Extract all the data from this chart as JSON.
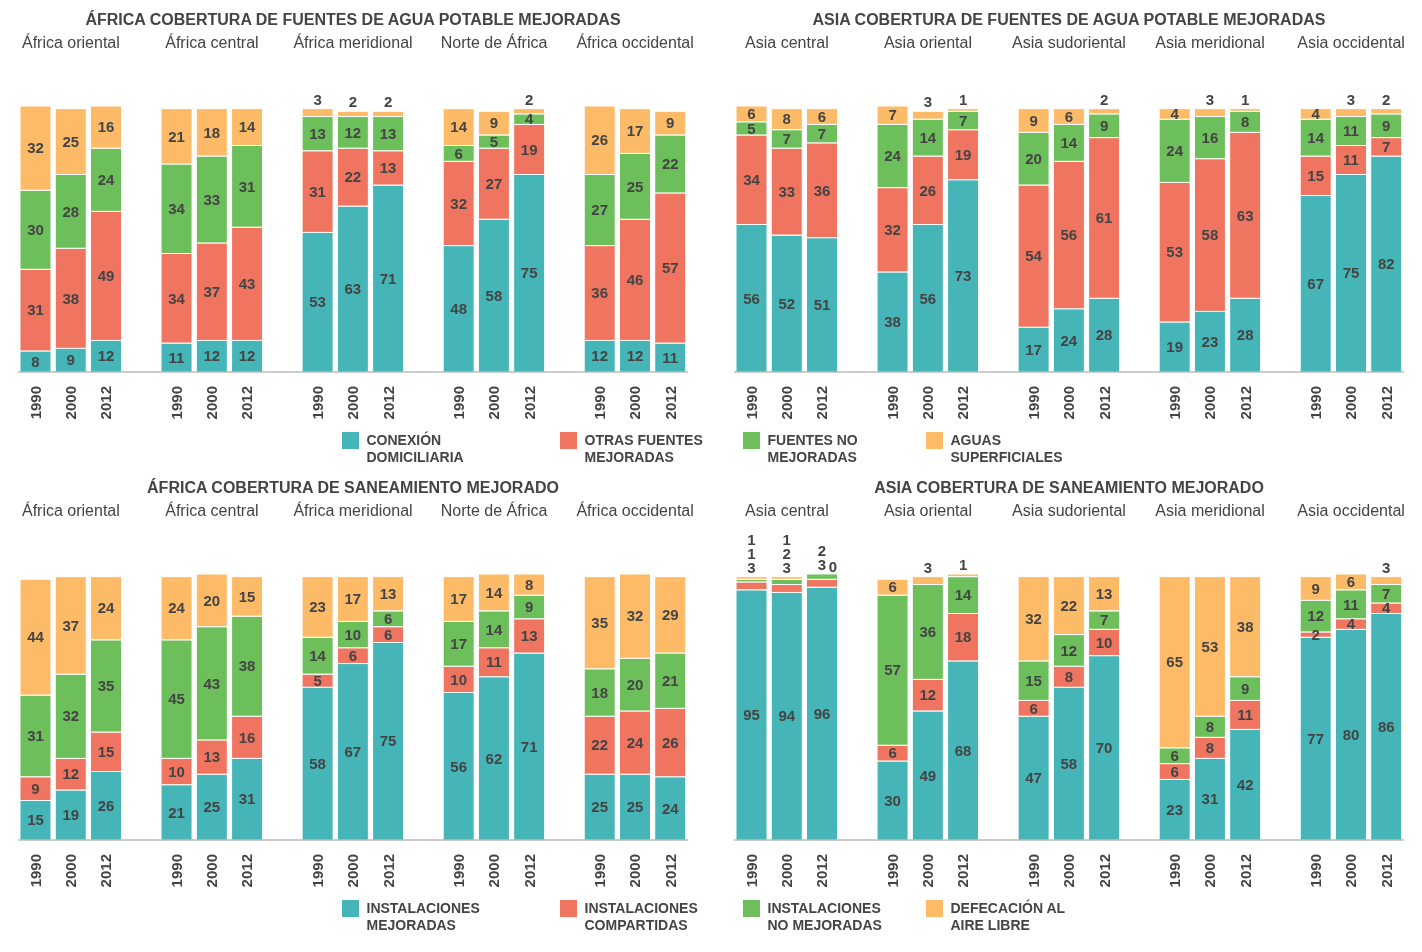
{
  "chart_data": [
    {
      "type": "bar",
      "stacked": true,
      "data_labels": true,
      "legend": "bottom",
      "title": "ÁFRICA COBERTURA DE FUENTES DE AGUA POTABLE MEJORADAS",
      "annotations": [
        "África oriental",
        "África central",
        "África meridional",
        "Norte de África",
        "África occidental"
      ],
      "categories": [
        "1990",
        "2000",
        "2012",
        "1990",
        "2000",
        "2012",
        "1990",
        "2000",
        "2012",
        "1990",
        "2000",
        "2012",
        "1990",
        "2000",
        "2012"
      ],
      "series": [
        {
          "name": "CONEXIÓN DOMICILIARIA",
          "color": "#45b5b8",
          "values": [
            8,
            9,
            12,
            11,
            12,
            12,
            53,
            63,
            71,
            48,
            58,
            75,
            12,
            12,
            11
          ]
        },
        {
          "name": "OTRAS FUENTES MEJORADAS",
          "color": "#ef7560",
          "values": [
            31,
            38,
            49,
            34,
            37,
            43,
            31,
            22,
            13,
            32,
            27,
            19,
            36,
            46,
            57
          ]
        },
        {
          "name": "FUENTES NO MEJORADAS",
          "color": "#6dbf5b",
          "values": [
            30,
            28,
            24,
            34,
            33,
            31,
            13,
            12,
            13,
            6,
            5,
            4,
            27,
            25,
            22
          ]
        },
        {
          "name": "AGUAS SUPERFICIALES",
          "color": "#fdbb68",
          "values": [
            32,
            25,
            16,
            21,
            18,
            14,
            3,
            2,
            2,
            14,
            9,
            2,
            26,
            17,
            9
          ]
        }
      ]
    },
    {
      "type": "bar",
      "stacked": true,
      "data_labels": true,
      "title": "ASIA COBERTURA DE FUENTES DE AGUA POTABLE MEJORADAS",
      "annotations": [
        "Asia central",
        "Asia oriental",
        "Asia sudoriental",
        "Asia meridional",
        "Asia occidental"
      ],
      "categories": [
        "1990",
        "2000",
        "2012",
        "1990",
        "2000",
        "2012",
        "1990",
        "2000",
        "2012",
        "1990",
        "2000",
        "2012",
        "1990",
        "2000",
        "2012"
      ],
      "series": [
        {
          "color": "#45b5b8",
          "values": [
            56,
            52,
            51,
            38,
            56,
            73,
            17,
            24,
            28,
            19,
            23,
            28,
            67,
            75,
            82
          ]
        },
        {
          "color": "#ef7560",
          "values": [
            34,
            33,
            36,
            32,
            26,
            19,
            54,
            56,
            61,
            53,
            58,
            63,
            15,
            11,
            7
          ]
        },
        {
          "color": "#6dbf5b",
          "values": [
            5,
            7,
            7,
            24,
            14,
            7,
            20,
            14,
            9,
            24,
            16,
            8,
            14,
            11,
            9
          ]
        },
        {
          "color": "#fdbb68",
          "values": [
            6,
            8,
            6,
            7,
            3,
            1,
            9,
            6,
            2,
            4,
            3,
            1,
            4,
            3,
            2
          ]
        }
      ]
    },
    {
      "type": "bar",
      "stacked": true,
      "data_labels": true,
      "legend": "bottom",
      "title": "ÁFRICA COBERTURA DE SANEAMIENTO MEJORADO",
      "annotations": [
        "África oriental",
        "África central",
        "África meridional",
        "Norte de África",
        "África occidental"
      ],
      "categories": [
        "1990",
        "2000",
        "2012",
        "1990",
        "2000",
        "2012",
        "1990",
        "2000",
        "2012",
        "1990",
        "2000",
        "2012",
        "1990",
        "2000",
        "2012"
      ],
      "series": [
        {
          "name": "INSTALACIONES MEJORADAS",
          "color": "#45b5b8",
          "values": [
            15,
            19,
            26,
            21,
            25,
            31,
            58,
            67,
            75,
            56,
            62,
            71,
            25,
            25,
            24
          ]
        },
        {
          "name": "INSTALACIONES COMPARTIDAS",
          "color": "#ef7560",
          "values": [
            9,
            12,
            15,
            10,
            13,
            16,
            5,
            6,
            6,
            10,
            11,
            13,
            22,
            24,
            26
          ]
        },
        {
          "name": "INSTALACIONES NO MEJORADAS",
          "color": "#6dbf5b",
          "values": [
            31,
            32,
            35,
            45,
            43,
            38,
            14,
            10,
            6,
            17,
            14,
            9,
            18,
            20,
            21
          ]
        },
        {
          "name": "DEFECACIÓN AL AIRE LIBRE",
          "color": "#fdbb68",
          "values": [
            44,
            37,
            24,
            24,
            20,
            15,
            23,
            17,
            13,
            17,
            14,
            8,
            35,
            32,
            29
          ]
        }
      ]
    },
    {
      "type": "bar",
      "stacked": true,
      "data_labels": true,
      "title": "ASIA COBERTURA DE SANEAMIENTO MEJORADO",
      "annotations": [
        "Asia central",
        "Asia oriental",
        "Asia sudoriental",
        "Asia meridional",
        "Asia occidental"
      ],
      "categories": [
        "1990",
        "2000",
        "2012",
        "1990",
        "2000",
        "2012",
        "1990",
        "2000",
        "2012",
        "1990",
        "2000",
        "2012",
        "1990",
        "2000",
        "2012"
      ],
      "series": [
        {
          "color": "#45b5b8",
          "values": [
            95,
            94,
            96,
            30,
            49,
            68,
            47,
            58,
            70,
            23,
            31,
            42,
            77,
            80,
            86
          ]
        },
        {
          "color": "#ef7560",
          "values": [
            3,
            3,
            3,
            6,
            12,
            18,
            6,
            8,
            10,
            6,
            8,
            11,
            2,
            4,
            4
          ]
        },
        {
          "color": "#6dbf5b",
          "values": [
            1,
            2,
            2,
            57,
            36,
            14,
            15,
            12,
            7,
            6,
            8,
            9,
            12,
            11,
            7
          ]
        },
        {
          "color": "#fdbb68",
          "values": [
            1,
            1,
            0,
            6,
            3,
            1,
            32,
            22,
            13,
            65,
            53,
            38,
            9,
            6,
            3
          ]
        }
      ]
    }
  ]
}
